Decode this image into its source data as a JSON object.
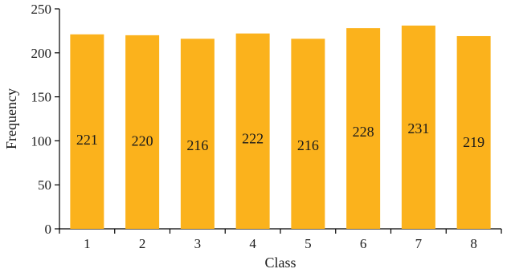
{
  "chart_data": {
    "type": "bar",
    "categories": [
      "1",
      "2",
      "3",
      "4",
      "5",
      "6",
      "7",
      "8"
    ],
    "values": [
      221,
      220,
      216,
      222,
      216,
      228,
      231,
      219
    ],
    "data_labels": [
      "221",
      "220",
      "216",
      "222",
      "216",
      "228",
      "231",
      "219"
    ],
    "xlabel": "Class",
    "ylabel": "Frequency",
    "ylim": [
      0,
      250
    ],
    "yticks": [
      0,
      50,
      100,
      150,
      200,
      250
    ],
    "ytick_labels": [
      "0",
      "50",
      "100",
      "150",
      "200",
      "250"
    ],
    "grid": false,
    "bar_color": "#FBB21C"
  }
}
